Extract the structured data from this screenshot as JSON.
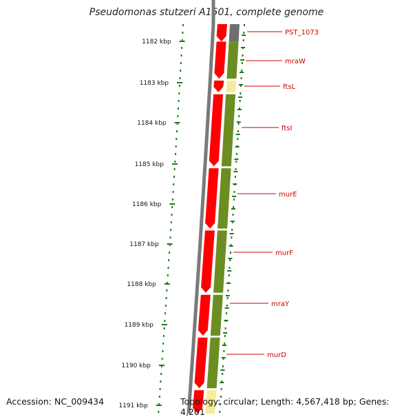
{
  "title": "Pseudomonas stutzeri A1501, complete genome",
  "footer": {
    "accession": "Accession: NC_009434",
    "summary": "Topology: circular; Length: 4,567,418 bp; Genes: 4,201"
  },
  "colors": {
    "backbone": "#7a7a7a",
    "cds": "#ff0000",
    "cds_dark": "#c80000",
    "gene": "#6b8e23",
    "gene_light": "#f5eb9b",
    "gene_other": "#6e6e6e",
    "ticks": "#1a7a1a",
    "label": "#cc0000"
  },
  "scale": {
    "labels": [
      "1182 kbp",
      "1183 kbp",
      "1184 kbp",
      "1185 kbp",
      "1186 kbp",
      "1187 kbp",
      "1188 kbp",
      "1189 kbp",
      "1190 kbp",
      "1191 kbp"
    ]
  },
  "genes": [
    {
      "name": "PST_1073",
      "start": 0.0,
      "end": 0.045,
      "shade": "other"
    },
    {
      "name": "mraW",
      "start": 0.045,
      "end": 0.14,
      "shade": "normal"
    },
    {
      "name": "ftsL",
      "start": 0.145,
      "end": 0.175,
      "shade": "light"
    },
    {
      "name": "ftsI",
      "start": 0.18,
      "end": 0.365,
      "shade": "normal"
    },
    {
      "name": "murE",
      "start": 0.37,
      "end": 0.525,
      "shade": "normal"
    },
    {
      "name": "murF",
      "start": 0.53,
      "end": 0.69,
      "shade": "normal"
    },
    {
      "name": "mraY",
      "start": 0.695,
      "end": 0.8,
      "shade": "normal"
    },
    {
      "name": "murD",
      "start": 0.805,
      "end": 0.935,
      "shade": "normal"
    },
    {
      "name": "",
      "start": 0.94,
      "end": 1.0,
      "shade": "light"
    }
  ]
}
